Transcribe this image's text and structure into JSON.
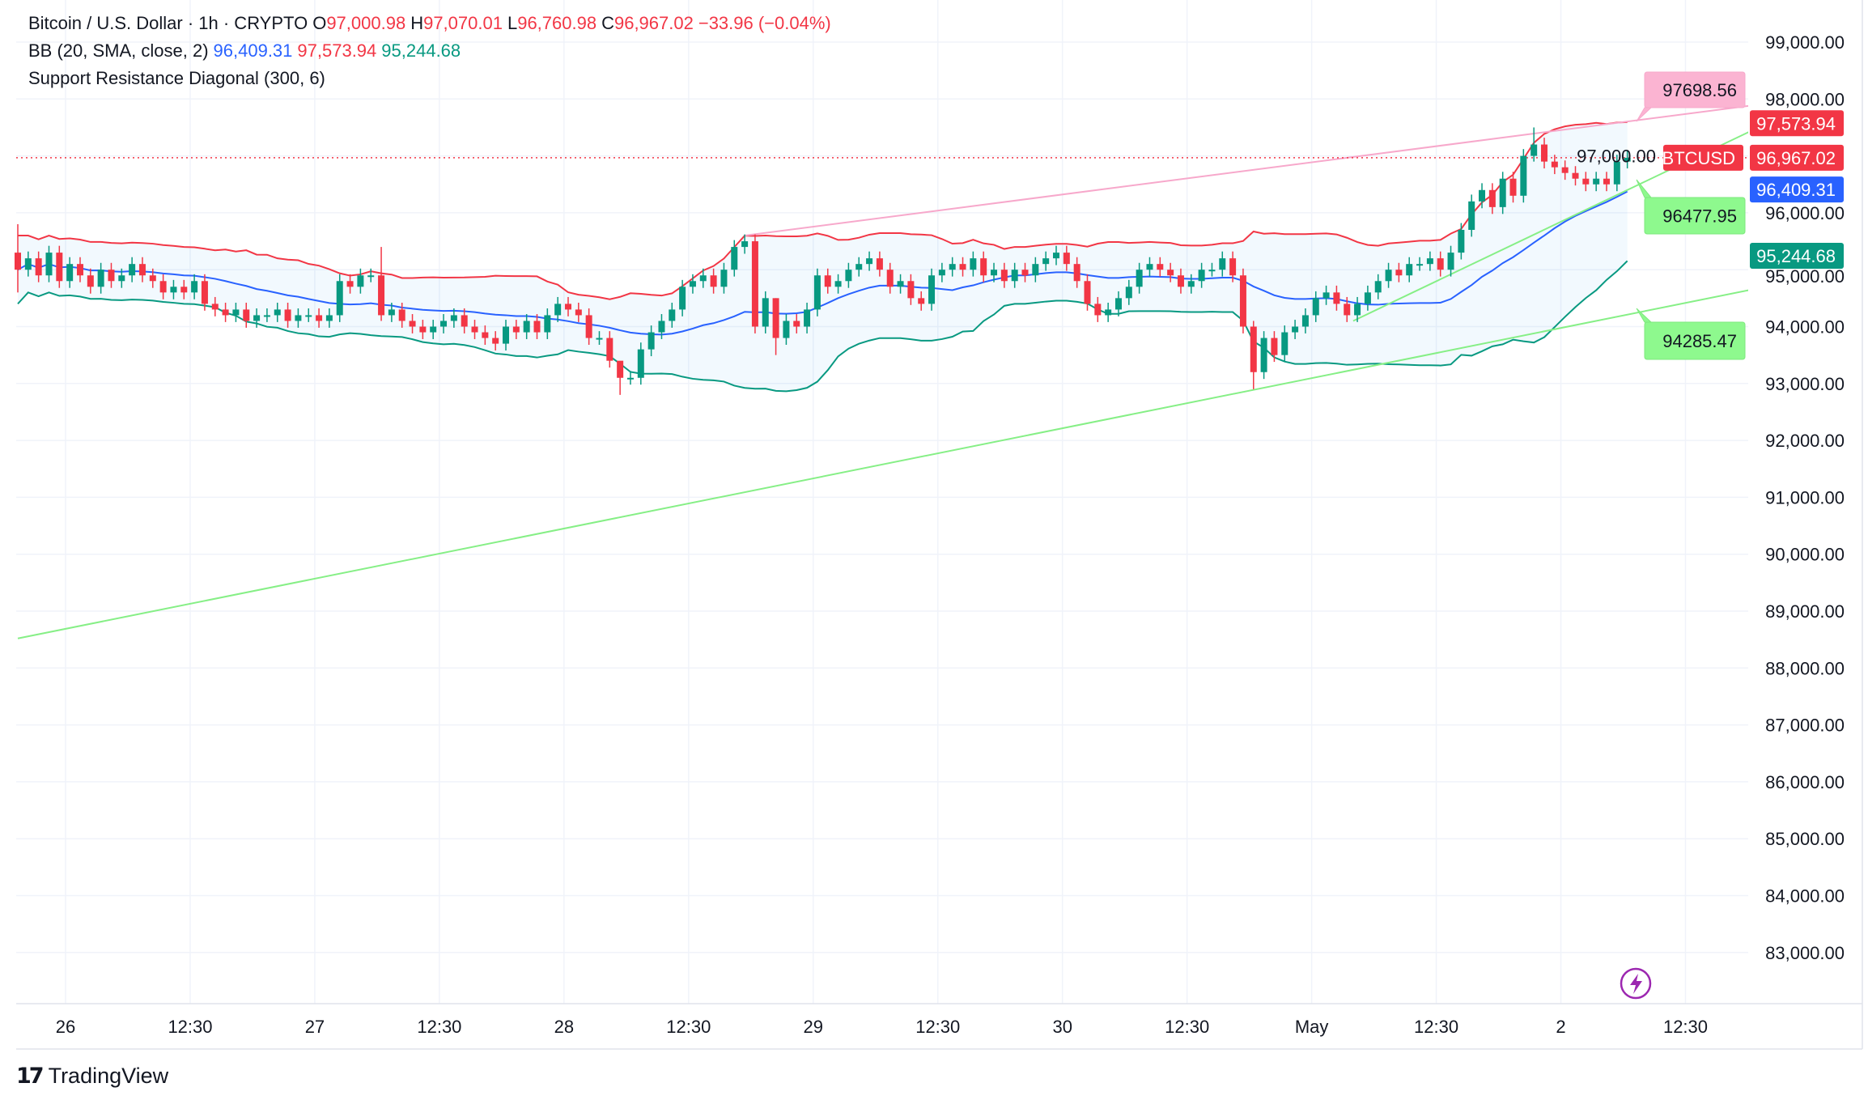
{
  "header": {
    "symbol": "Bitcoin / U.S. Dollar · 1h · CRYPTO",
    "o_label": "O",
    "o": "97,000.98",
    "h_label": "H",
    "h": "97,070.01",
    "l_label": "L",
    "l": "96,760.98",
    "c_label": "C",
    "c": "96,967.02",
    "change": "−33.96 (−0.04%)",
    "bb_name": "BB (20, SMA, close, 2)",
    "bb_basis": "96,409.31",
    "bb_upper": "97,573.94",
    "bb_lower": "95,244.68",
    "srd_name": "Support Resistance Diagonal (300, 6)"
  },
  "chart_data": {
    "type": "candlestick",
    "symbol": "BTCUSD",
    "interval": "1h",
    "ylim": [
      82500,
      99400
    ],
    "y_ticks": [
      "99,000.00",
      "98,000.00",
      "97,000.00",
      "96,000.00",
      "95,000.00",
      "94,000.00",
      "93,000.00",
      "92,000.00",
      "91,000.00",
      "90,000.00",
      "89,000.00",
      "88,000.00",
      "87,000.00",
      "86,000.00",
      "85,000.00",
      "84,000.00",
      "83,000.00"
    ],
    "y_tick_values": [
      99000,
      98000,
      97000,
      96000,
      95000,
      94000,
      93000,
      92000,
      91000,
      90000,
      89000,
      88000,
      87000,
      86000,
      85000,
      84000,
      83000
    ],
    "x_ticks": [
      "26",
      "12:30",
      "27",
      "12:30",
      "28",
      "12:30",
      "29",
      "12:30",
      "30",
      "12:30",
      "May",
      "12:30",
      "2",
      "12:30"
    ],
    "grid": true,
    "first_open": 95300,
    "closes": [
      95000,
      95200,
      94900,
      95300,
      94800,
      95100,
      94900,
      94700,
      95000,
      94800,
      94900,
      95100,
      94900,
      94800,
      94600,
      94700,
      94600,
      94800,
      94400,
      94300,
      94200,
      94300,
      94100,
      94200,
      94200,
      94300,
      94100,
      94200,
      94200,
      94100,
      94200,
      94800,
      94700,
      94900,
      94900,
      94200,
      94300,
      94100,
      94000,
      93900,
      94000,
      94100,
      94200,
      94000,
      93900,
      93800,
      93700,
      94000,
      93900,
      94100,
      93900,
      94200,
      94400,
      94300,
      94200,
      93800,
      93800,
      93400,
      93100,
      93100,
      93600,
      93900,
      94100,
      94300,
      94700,
      94800,
      94900,
      94700,
      95000,
      95400,
      95500,
      94000,
      94500,
      93800,
      94100,
      94000,
      94300,
      94900,
      94700,
      94800,
      95000,
      95100,
      95200,
      95000,
      94700,
      94800,
      94500,
      94400,
      94900,
      95000,
      95100,
      95000,
      95200,
      94900,
      95000,
      94800,
      95000,
      94900,
      95100,
      95200,
      95300,
      95100,
      94800,
      94400,
      94200,
      94300,
      94500,
      94700,
      95000,
      95100,
      95000,
      94900,
      94700,
      94800,
      95000,
      95000,
      95200,
      94900,
      94000,
      93200,
      93800,
      93500,
      93900,
      94000,
      94200,
      94500,
      94600,
      94400,
      94200,
      94400,
      94600,
      94800,
      95000,
      94900,
      95100,
      95100,
      95200,
      95000,
      95300,
      95700,
      96200,
      96400,
      96100,
      96600,
      96300,
      97000,
      97200,
      96900,
      96800,
      96700,
      96600,
      96500,
      96600,
      96500,
      96900,
      96967.02
    ],
    "wick_extremes": [
      {
        "candle": 0,
        "high": 95800,
        "low": 94600
      },
      {
        "candle": 35,
        "high": 95400,
        "low": 94100
      },
      {
        "candle": 58,
        "high": 93300,
        "low": 92800
      },
      {
        "candle": 73,
        "high": 94500,
        "low": 93500
      },
      {
        "candle": 119,
        "high": 94100,
        "low": 92900
      },
      {
        "candle": 146,
        "high": 97500,
        "low": 96900
      }
    ],
    "last_price": 96967.02,
    "bollinger": {
      "period": 20,
      "mult": 2,
      "basis": 96409.31,
      "upper": 97573.94,
      "lower": 95244.68,
      "colors": {
        "basis": "#2962ff",
        "upper": "#f23645",
        "lower": "#089981"
      }
    },
    "diagonals": [
      {
        "kind": "resistance",
        "from": [
          70,
          95600
        ],
        "to": [
          166.7,
          97880
        ],
        "label": "97698.56",
        "color": "#f7a8cb"
      },
      {
        "kind": "support",
        "from": [
          128.6,
          94100
        ],
        "to": [
          166.7,
          97420
        ],
        "label": "96477.95",
        "color": "#86ef86"
      },
      {
        "kind": "support",
        "from": [
          0,
          88520
        ],
        "to": [
          166.7,
          94640
        ],
        "label": "94285.47",
        "color": "#86ef86"
      }
    ],
    "price_tags": {
      "symbol": "BTCUSD",
      "upper": "97,573.94",
      "last": "96,967.02",
      "basis": "96,409.31",
      "lower": "95,244.68"
    },
    "colors": {
      "up": "#089981",
      "down": "#f23645"
    }
  },
  "footer": {
    "brand": "TradingView",
    "brand_mark": "17"
  }
}
